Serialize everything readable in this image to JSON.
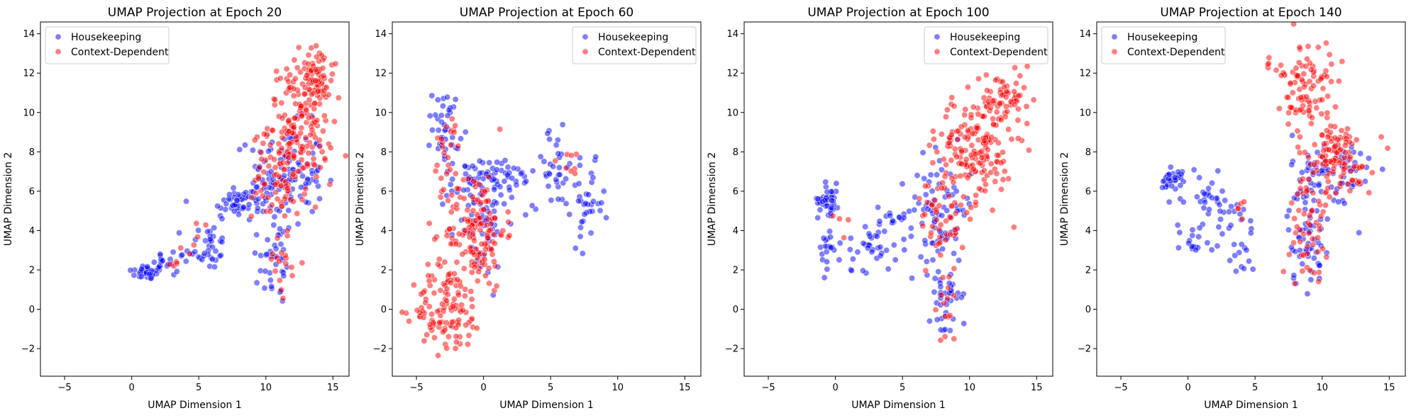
{
  "chart_data": [
    {
      "type": "scatter",
      "title": "UMAP Projection at Epoch 20",
      "xlabel": "UMAP Dimension 1",
      "ylabel": "UMAP Dimension 2",
      "xlim": [
        -6.8,
        16.2
      ],
      "ylim": [
        -3.4,
        14.6
      ],
      "xticks": [
        -5,
        0,
        5,
        10,
        15
      ],
      "yticks": [
        -2,
        0,
        2,
        4,
        6,
        8,
        10,
        12,
        14
      ],
      "legend_position": "top-left",
      "series": [
        {
          "name": "Housekeeping",
          "color": "#0000ff",
          "clusters": [
            {
              "x": 1.2,
              "y": 1.9,
              "sx": 0.7,
              "sy": 0.2,
              "n": 40
            },
            {
              "x": 3.2,
              "y": 2.4,
              "sx": 0.8,
              "sy": 0.3,
              "n": 18
            },
            {
              "x": 5.6,
              "y": 3.2,
              "sx": 0.8,
              "sy": 0.6,
              "n": 35
            },
            {
              "x": 7.7,
              "y": 5.3,
              "sx": 0.9,
              "sy": 0.4,
              "n": 30
            },
            {
              "x": 10.7,
              "y": 2.5,
              "sx": 0.7,
              "sy": 1.2,
              "n": 35
            },
            {
              "x": 11.5,
              "y": 6.8,
              "sx": 1.4,
              "sy": 1.3,
              "n": 110
            },
            {
              "x": 9.3,
              "y": 5.8,
              "sx": 0.8,
              "sy": 0.8,
              "n": 25
            }
          ]
        },
        {
          "name": "Context-Dependent",
          "color": "#ff0000",
          "clusters": [
            {
              "x": 12.6,
              "y": 9.5,
              "sx": 1.2,
              "sy": 1.5,
              "n": 170
            },
            {
              "x": 13.8,
              "y": 11.8,
              "sx": 0.6,
              "sy": 0.8,
              "n": 50
            },
            {
              "x": 11.0,
              "y": 6.8,
              "sx": 1.0,
              "sy": 1.1,
              "n": 70
            },
            {
              "x": 11.2,
              "y": 2.5,
              "sx": 0.5,
              "sy": 1.0,
              "n": 18
            },
            {
              "x": 4.8,
              "y": 3.6,
              "sx": 0.5,
              "sy": 0.5,
              "n": 6
            },
            {
              "x": 3.4,
              "y": 2.4,
              "sx": 0.4,
              "sy": 0.2,
              "n": 4
            }
          ]
        }
      ]
    },
    {
      "type": "scatter",
      "title": "UMAP Projection at Epoch 60",
      "xlabel": "UMAP Dimension 1",
      "ylabel": "UMAP Dimension 2",
      "xlim": [
        -6.8,
        16.2
      ],
      "ylim": [
        -3.4,
        14.6
      ],
      "xticks": [
        -5,
        0,
        5,
        10,
        15
      ],
      "yticks": [
        -2,
        0,
        2,
        4,
        6,
        8,
        10,
        12,
        14
      ],
      "legend_position": "top-right",
      "series": [
        {
          "name": "Housekeeping",
          "color": "#0000ff",
          "clusters": [
            {
              "x": -2.8,
              "y": 9.2,
              "sx": 0.5,
              "sy": 1.0,
              "n": 40
            },
            {
              "x": -1.0,
              "y": 6.5,
              "sx": 0.7,
              "sy": 0.6,
              "n": 30
            },
            {
              "x": 1.5,
              "y": 6.6,
              "sx": 1.2,
              "sy": 0.6,
              "n": 40
            },
            {
              "x": 5.3,
              "y": 7.2,
              "sx": 0.8,
              "sy": 1.0,
              "n": 35
            },
            {
              "x": 7.8,
              "y": 5.3,
              "sx": 0.6,
              "sy": 1.0,
              "n": 35
            },
            {
              "x": -0.2,
              "y": 4.4,
              "sx": 1.0,
              "sy": 1.4,
              "n": 60
            }
          ]
        },
        {
          "name": "Context-Dependent",
          "color": "#ff0000",
          "clusters": [
            {
              "x": -0.6,
              "y": 4.0,
              "sx": 1.1,
              "sy": 1.5,
              "n": 150
            },
            {
              "x": -2.6,
              "y": 0.0,
              "sx": 1.3,
              "sy": 1.1,
              "n": 110
            },
            {
              "x": -2.7,
              "y": 8.0,
              "sx": 0.5,
              "sy": 1.0,
              "n": 22
            },
            {
              "x": 6.5,
              "y": 7.4,
              "sx": 0.8,
              "sy": 0.4,
              "n": 8
            },
            {
              "x": -4.8,
              "y": -0.1,
              "sx": 0.4,
              "sy": 0.2,
              "n": 6
            }
          ]
        }
      ]
    },
    {
      "type": "scatter",
      "title": "UMAP Projection at Epoch 100",
      "xlabel": "UMAP Dimension 1",
      "ylabel": "UMAP Dimension 2",
      "xlim": [
        -6.8,
        16.2
      ],
      "ylim": [
        -3.4,
        14.6
      ],
      "xticks": [
        -5,
        0,
        5,
        10,
        15
      ],
      "yticks": [
        -2,
        0,
        2,
        4,
        6,
        8,
        10,
        12,
        14
      ],
      "legend_position": "top-right",
      "series": [
        {
          "name": "Housekeeping",
          "color": "#0000ff",
          "clusters": [
            {
              "x": -0.5,
              "y": 5.6,
              "sx": 0.4,
              "sy": 0.4,
              "n": 40
            },
            {
              "x": -0.9,
              "y": 3.0,
              "sx": 0.3,
              "sy": 0.6,
              "n": 12
            },
            {
              "x": 2.5,
              "y": 3.2,
              "sx": 1.6,
              "sy": 0.6,
              "n": 45
            },
            {
              "x": 4.4,
              "y": 4.7,
              "sx": 0.6,
              "sy": 0.3,
              "n": 14
            },
            {
              "x": 7.8,
              "y": 5.0,
              "sx": 1.2,
              "sy": 1.4,
              "n": 75
            },
            {
              "x": 8.2,
              "y": 0.8,
              "sx": 0.6,
              "sy": 1.2,
              "n": 40
            }
          ]
        },
        {
          "name": "Context-Dependent",
          "color": "#ff0000",
          "clusters": [
            {
              "x": 10.4,
              "y": 8.2,
              "sx": 1.4,
              "sy": 1.4,
              "n": 170
            },
            {
              "x": 12.8,
              "y": 10.6,
              "sx": 1.0,
              "sy": 0.7,
              "n": 60
            },
            {
              "x": 8.0,
              "y": 4.6,
              "sx": 0.8,
              "sy": 1.2,
              "n": 50
            },
            {
              "x": 8.2,
              "y": 0.4,
              "sx": 0.5,
              "sy": 1.0,
              "n": 14
            },
            {
              "x": 0.3,
              "y": 4.1,
              "sx": 0.5,
              "sy": 0.4,
              "n": 4
            }
          ]
        }
      ]
    },
    {
      "type": "scatter",
      "title": "UMAP Projection at Epoch 140",
      "xlabel": "UMAP Dimension 1",
      "ylabel": "UMAP Dimension 2",
      "xlim": [
        -6.8,
        16.2
      ],
      "ylim": [
        -3.4,
        14.6
      ],
      "xticks": [
        -5,
        0,
        5,
        10,
        15
      ],
      "yticks": [
        -2,
        0,
        2,
        4,
        6,
        8,
        10,
        12,
        14
      ],
      "legend_position": "top-left",
      "series": [
        {
          "name": "Housekeeping",
          "color": "#0000ff",
          "clusters": [
            {
              "x": -1.2,
              "y": 6.7,
              "sx": 0.4,
              "sy": 0.3,
              "n": 30
            },
            {
              "x": 1.6,
              "y": 5.6,
              "sx": 1.0,
              "sy": 0.6,
              "n": 35
            },
            {
              "x": 0.6,
              "y": 3.5,
              "sx": 0.9,
              "sy": 0.5,
              "n": 18
            },
            {
              "x": 3.8,
              "y": 3.5,
              "sx": 0.6,
              "sy": 1.0,
              "n": 22
            },
            {
              "x": 8.8,
              "y": 3.6,
              "sx": 0.7,
              "sy": 1.2,
              "n": 55
            },
            {
              "x": 10.8,
              "y": 6.8,
              "sx": 1.5,
              "sy": 1.1,
              "n": 80
            }
          ]
        },
        {
          "name": "Context-Dependent",
          "color": "#ff0000",
          "clusters": [
            {
              "x": 8.9,
              "y": 11.2,
              "sx": 0.9,
              "sy": 1.2,
              "n": 90
            },
            {
              "x": 11.0,
              "y": 7.6,
              "sx": 1.4,
              "sy": 1.0,
              "n": 120
            },
            {
              "x": 9.0,
              "y": 4.0,
              "sx": 0.7,
              "sy": 1.2,
              "n": 45
            },
            {
              "x": 6.5,
              "y": 12.4,
              "sx": 0.4,
              "sy": 0.2,
              "n": 8
            },
            {
              "x": 3.9,
              "y": 5.0,
              "sx": 0.4,
              "sy": 0.4,
              "n": 5
            }
          ]
        }
      ]
    }
  ]
}
